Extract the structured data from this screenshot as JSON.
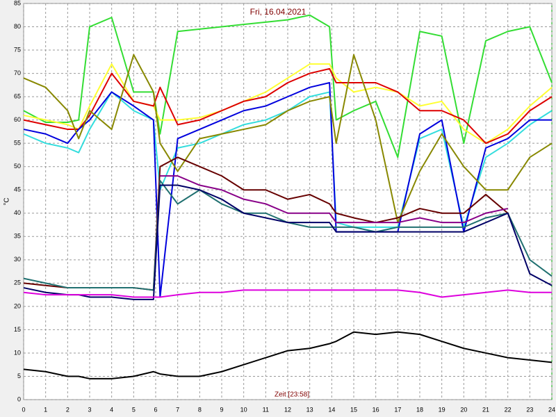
{
  "chart_data": {
    "type": "line",
    "title": "Fri, 16.04.2021",
    "x_label": "Zeit [23:58]",
    "y_label": "°C",
    "x": [
      0,
      1,
      2,
      2.5,
      3,
      4,
      5,
      5.9,
      6.2,
      7,
      8,
      9,
      10,
      11,
      12,
      13,
      13.9,
      14.2,
      15,
      16,
      17,
      18,
      19,
      20,
      21,
      22,
      23,
      24
    ],
    "xlim": [
      0,
      24
    ],
    "xticks": [
      0,
      1,
      2,
      3,
      4,
      5,
      6,
      7,
      8,
      9,
      10,
      11,
      12,
      13,
      14,
      15,
      16,
      17,
      18,
      19,
      20,
      21,
      22,
      23,
      24
    ],
    "ylim": [
      0,
      85
    ],
    "yticks": [
      0,
      5,
      10,
      15,
      20,
      25,
      30,
      35,
      40,
      45,
      50,
      55,
      60,
      65,
      70,
      75,
      80,
      85
    ],
    "grid": true,
    "series": [
      {
        "color": "#33dd33",
        "values": [
          62,
          59.5,
          59.5,
          60,
          80,
          82,
          66,
          66,
          57,
          79,
          79.5,
          80,
          80.5,
          81,
          81.5,
          82.5,
          80,
          60,
          62,
          64,
          52,
          79,
          78,
          55,
          77,
          79,
          80,
          68
        ]
      },
      {
        "color": "#ffff33",
        "values": [
          61,
          60,
          59,
          58,
          63,
          72,
          64,
          63,
          60,
          60,
          60.5,
          62,
          64,
          66,
          69,
          72,
          72,
          69,
          66,
          67,
          66,
          63,
          64,
          58,
          55,
          58,
          63,
          67
        ]
      },
      {
        "color": "#dd0000",
        "values": [
          60,
          59,
          58,
          58,
          61,
          70,
          64,
          63,
          67,
          59,
          60,
          62,
          64,
          65,
          68,
          70,
          71,
          68,
          68,
          68,
          66,
          62,
          62,
          60,
          55,
          57,
          62,
          65
        ]
      },
      {
        "color": "#33dddd",
        "values": [
          57,
          55,
          54,
          53,
          58,
          66,
          62,
          60,
          45,
          54,
          55,
          57,
          59,
          60,
          62,
          65,
          66,
          38,
          37,
          37,
          37,
          56,
          58,
          37,
          52,
          55,
          59,
          62
        ]
      },
      {
        "color": "#0000dd",
        "values": [
          58,
          57,
          55,
          58,
          60,
          66,
          63,
          60,
          22,
          56,
          58,
          60,
          62,
          63,
          65,
          67,
          68,
          36,
          36,
          36,
          36,
          57,
          60,
          36,
          54,
          56,
          60,
          60
        ]
      },
      {
        "color": "#888800",
        "values": [
          69,
          67,
          62,
          56,
          62,
          58,
          74,
          66,
          55,
          49,
          56,
          57,
          58,
          59,
          62,
          64,
          65,
          55,
          74,
          60,
          38,
          49,
          57,
          50,
          45,
          45,
          52,
          55
        ]
      },
      {
        "color": "#660000",
        "values": [
          25,
          24.5,
          24,
          24,
          24,
          24,
          24,
          23.5,
          50,
          52,
          50,
          48,
          45,
          45,
          43,
          44,
          42,
          40,
          39,
          38,
          39,
          41,
          40,
          40,
          44,
          40,
          null,
          null
        ]
      },
      {
        "color": "#880088",
        "values": [
          null,
          null,
          null,
          null,
          null,
          null,
          null,
          null,
          48,
          48,
          46,
          45,
          43,
          42,
          40,
          40,
          40,
          38,
          38,
          38,
          38,
          39,
          38,
          38,
          40,
          41,
          null,
          null
        ]
      },
      {
        "color": "#207070",
        "values": [
          26,
          25,
          24,
          24,
          24,
          24,
          24,
          23.5,
          47,
          42,
          45,
          42,
          40,
          40,
          38,
          37,
          37,
          37,
          37,
          36,
          37,
          37,
          37,
          37,
          39,
          40,
          30,
          26.5
        ]
      },
      {
        "color": "#000066",
        "values": [
          24,
          23,
          22.5,
          22.5,
          22,
          22,
          21.5,
          21.5,
          46,
          46,
          45,
          43,
          40,
          39,
          38,
          38,
          38,
          36,
          36,
          36,
          36,
          36,
          36,
          36,
          38,
          40,
          27,
          24.5
        ]
      },
      {
        "color": "#dd00dd",
        "values": [
          23,
          22.5,
          22.5,
          22.5,
          22.5,
          22.5,
          22,
          22,
          22,
          22.5,
          23,
          23,
          23.5,
          23.5,
          23.5,
          23.5,
          23.5,
          23.5,
          23.5,
          23.5,
          23.5,
          23,
          22,
          22.5,
          23,
          23.5,
          23,
          23
        ]
      },
      {
        "color": "#000000",
        "values": [
          6.5,
          6,
          5,
          5,
          4.5,
          4.5,
          5,
          6,
          5.5,
          5,
          5,
          6,
          7.5,
          9,
          10.5,
          11,
          12,
          12.5,
          14.5,
          14,
          14.5,
          14,
          12.5,
          11,
          10,
          9,
          8.5,
          8
        ]
      }
    ]
  }
}
